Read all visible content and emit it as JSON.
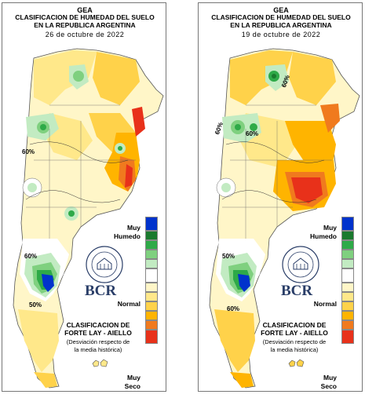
{
  "maps": [
    {
      "title_line1": "GEA",
      "title_line2": "CLASIFICACION DE HUMEDAD DEL SUELO",
      "title_line3": "EN LA REPUBLICA ARGENTINA",
      "date": "26 de octubre de 2022",
      "contour_labels": [
        "60%",
        "60%",
        "50%"
      ]
    },
    {
      "title_line1": "GEA",
      "title_line2": "CLASIFICACION DE HUMEDAD DEL SUELO",
      "title_line3": "EN LA REPUBLICA ARGENTINA",
      "date": "19 de octubre de 2022",
      "contour_labels": [
        "60%",
        "60%",
        "60%",
        "50%",
        "60%"
      ]
    }
  ],
  "legend": {
    "top_label_1": "Muy",
    "top_label_2": "Humedo",
    "middle_label": "Normal",
    "bottom_label_1": "Muy",
    "bottom_label_2": "Seco",
    "colors": [
      "#0033cc",
      "#1a7a2e",
      "#2eaa48",
      "#7fd07f",
      "#c2ebc2",
      "#ffffff",
      "#fff6c8",
      "#ffe88a",
      "#ffd24a",
      "#ffb400",
      "#f07a1e",
      "#e8311a"
    ]
  },
  "logo": {
    "text": "BCR",
    "seal_text": "BOLSA DE COMERCIO DE ROSARIO"
  },
  "classification": {
    "line1": "CLASIFICACION DE",
    "line2": "FORTE LAY - AIELLO",
    "note1": "(Desviación respecto de",
    "note2": "la media histórica)"
  }
}
